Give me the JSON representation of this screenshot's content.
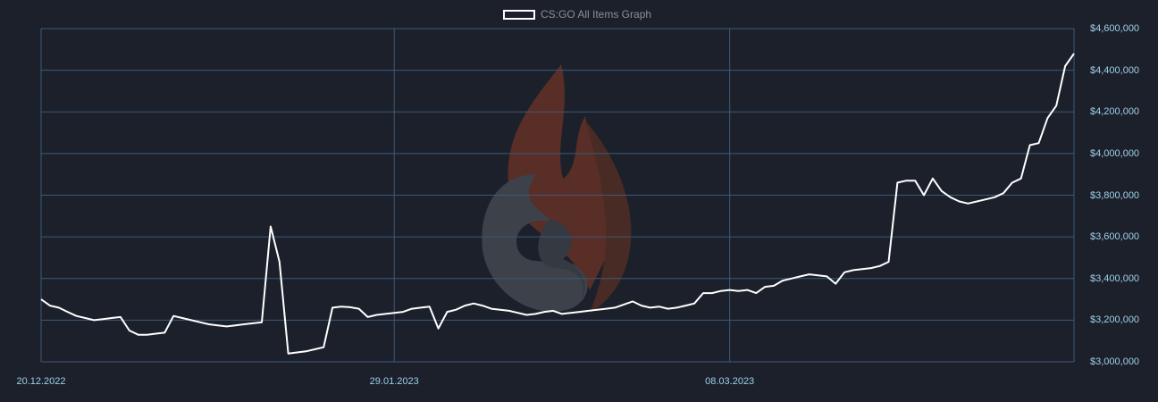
{
  "legend": {
    "label": "CS:GO All Items Graph"
  },
  "colors": {
    "background": "#1b202b",
    "grid": "#3d5a78",
    "line": "#ffffff",
    "tick_text": "#9fd0e8",
    "legend_text": "#8a8f99"
  },
  "watermark": {
    "icon": "flame-logo-icon"
  },
  "chart_data": {
    "type": "line",
    "title": "",
    "xlabel": "",
    "ylabel": "",
    "grid": true,
    "legend_position": "top-center",
    "x_range": [
      "2022-12-20",
      "2023-04-16"
    ],
    "ylim": [
      3000000,
      4600000
    ],
    "y_ticks": [
      "$3,000,000",
      "$3,200,000",
      "$3,400,000",
      "$3,600,000",
      "$3,800,000",
      "$4,000,000",
      "$4,200,000",
      "$4,400,000",
      "$4,600,000"
    ],
    "x_ticks": [
      "20.12.2022",
      "29.01.2023",
      "08.03.2023"
    ],
    "series": [
      {
        "name": "CS:GO All Items Graph",
        "points": [
          [
            "2022-12-20",
            3300000
          ],
          [
            "2022-12-21",
            3270000
          ],
          [
            "2022-12-22",
            3260000
          ],
          [
            "2022-12-23",
            3240000
          ],
          [
            "2022-12-24",
            3220000
          ],
          [
            "2022-12-25",
            3210000
          ],
          [
            "2022-12-26",
            3200000
          ],
          [
            "2022-12-27",
            3205000
          ],
          [
            "2022-12-28",
            3210000
          ],
          [
            "2022-12-29",
            3215000
          ],
          [
            "2022-12-30",
            3150000
          ],
          [
            "2022-12-31",
            3130000
          ],
          [
            "2023-01-01",
            3130000
          ],
          [
            "2023-01-02",
            3135000
          ],
          [
            "2023-01-03",
            3140000
          ],
          [
            "2023-01-04",
            3220000
          ],
          [
            "2023-01-05",
            3210000
          ],
          [
            "2023-01-06",
            3200000
          ],
          [
            "2023-01-07",
            3190000
          ],
          [
            "2023-01-08",
            3180000
          ],
          [
            "2023-01-09",
            3175000
          ],
          [
            "2023-01-10",
            3170000
          ],
          [
            "2023-01-11",
            3175000
          ],
          [
            "2023-01-12",
            3180000
          ],
          [
            "2023-01-13",
            3185000
          ],
          [
            "2023-01-14",
            3190000
          ],
          [
            "2023-01-15",
            3650000
          ],
          [
            "2023-01-16",
            3480000
          ],
          [
            "2023-01-17",
            3040000
          ],
          [
            "2023-01-18",
            3045000
          ],
          [
            "2023-01-19",
            3050000
          ],
          [
            "2023-01-20",
            3060000
          ],
          [
            "2023-01-21",
            3070000
          ],
          [
            "2023-01-22",
            3260000
          ],
          [
            "2023-01-23",
            3265000
          ],
          [
            "2023-01-24",
            3262000
          ],
          [
            "2023-01-25",
            3255000
          ],
          [
            "2023-01-26",
            3215000
          ],
          [
            "2023-01-27",
            3225000
          ],
          [
            "2023-01-28",
            3230000
          ],
          [
            "2023-01-29",
            3235000
          ],
          [
            "2023-01-30",
            3240000
          ],
          [
            "2023-01-31",
            3255000
          ],
          [
            "2023-02-01",
            3260000
          ],
          [
            "2023-02-02",
            3265000
          ],
          [
            "2023-02-03",
            3160000
          ],
          [
            "2023-02-04",
            3240000
          ],
          [
            "2023-02-05",
            3250000
          ],
          [
            "2023-02-06",
            3270000
          ],
          [
            "2023-02-07",
            3280000
          ],
          [
            "2023-02-08",
            3270000
          ],
          [
            "2023-02-09",
            3255000
          ],
          [
            "2023-02-10",
            3250000
          ],
          [
            "2023-02-11",
            3245000
          ],
          [
            "2023-02-12",
            3235000
          ],
          [
            "2023-02-13",
            3225000
          ],
          [
            "2023-02-14",
            3230000
          ],
          [
            "2023-02-15",
            3240000
          ],
          [
            "2023-02-16",
            3245000
          ],
          [
            "2023-02-17",
            3230000
          ],
          [
            "2023-02-18",
            3235000
          ],
          [
            "2023-02-19",
            3240000
          ],
          [
            "2023-02-20",
            3245000
          ],
          [
            "2023-02-21",
            3250000
          ],
          [
            "2023-02-22",
            3255000
          ],
          [
            "2023-02-23",
            3260000
          ],
          [
            "2023-02-24",
            3275000
          ],
          [
            "2023-02-25",
            3290000
          ],
          [
            "2023-02-26",
            3270000
          ],
          [
            "2023-02-27",
            3260000
          ],
          [
            "2023-02-28",
            3265000
          ],
          [
            "2023-03-01",
            3255000
          ],
          [
            "2023-03-02",
            3260000
          ],
          [
            "2023-03-03",
            3270000
          ],
          [
            "2023-03-04",
            3280000
          ],
          [
            "2023-03-05",
            3330000
          ],
          [
            "2023-03-06",
            3330000
          ],
          [
            "2023-03-07",
            3340000
          ],
          [
            "2023-03-08",
            3345000
          ],
          [
            "2023-03-09",
            3340000
          ],
          [
            "2023-03-10",
            3345000
          ],
          [
            "2023-03-11",
            3330000
          ],
          [
            "2023-03-12",
            3360000
          ],
          [
            "2023-03-13",
            3365000
          ],
          [
            "2023-03-14",
            3390000
          ],
          [
            "2023-03-15",
            3400000
          ],
          [
            "2023-03-16",
            3410000
          ],
          [
            "2023-03-17",
            3420000
          ],
          [
            "2023-03-18",
            3415000
          ],
          [
            "2023-03-19",
            3410000
          ],
          [
            "2023-03-20",
            3375000
          ],
          [
            "2023-03-21",
            3430000
          ],
          [
            "2023-03-22",
            3440000
          ],
          [
            "2023-03-23",
            3445000
          ],
          [
            "2023-03-24",
            3450000
          ],
          [
            "2023-03-25",
            3460000
          ],
          [
            "2023-03-26",
            3480000
          ],
          [
            "2023-03-27",
            3860000
          ],
          [
            "2023-03-28",
            3870000
          ],
          [
            "2023-03-29",
            3870000
          ],
          [
            "2023-03-30",
            3800000
          ],
          [
            "2023-03-31",
            3880000
          ],
          [
            "2023-04-01",
            3820000
          ],
          [
            "2023-04-02",
            3790000
          ],
          [
            "2023-04-03",
            3770000
          ],
          [
            "2023-04-04",
            3760000
          ],
          [
            "2023-04-05",
            3770000
          ],
          [
            "2023-04-06",
            3780000
          ],
          [
            "2023-04-07",
            3790000
          ],
          [
            "2023-04-08",
            3810000
          ],
          [
            "2023-04-09",
            3860000
          ],
          [
            "2023-04-10",
            3880000
          ],
          [
            "2023-04-11",
            4040000
          ],
          [
            "2023-04-12",
            4050000
          ],
          [
            "2023-04-13",
            4170000
          ],
          [
            "2023-04-14",
            4230000
          ],
          [
            "2023-04-15",
            4420000
          ],
          [
            "2023-04-16",
            4480000
          ]
        ]
      }
    ]
  }
}
